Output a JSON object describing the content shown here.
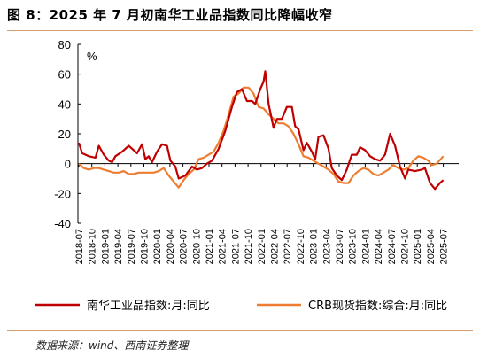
{
  "header": {
    "title": "图 8：2025 年 7 月初南华工业品指数同比降幅收窄"
  },
  "footer": {
    "source": "数据来源：wind、西南证券整理"
  },
  "colors": {
    "series1": "#c00000",
    "series2": "#ed7d31",
    "rule": "#d9a074"
  },
  "chart_data": {
    "type": "line",
    "title": "",
    "ylabel": "%",
    "xlabel": "",
    "ylim": [
      -40,
      80
    ],
    "yticks": [
      -40,
      -20,
      0,
      20,
      40,
      60,
      80
    ],
    "grid": false,
    "legend_position": "bottom",
    "x_tick_labels": [
      "2018-07",
      "2018-10",
      "2019-01",
      "2019-04",
      "2019-07",
      "2019-10",
      "2020-01",
      "2020-04",
      "2020-07",
      "2020-10",
      "2021-01",
      "2021-04",
      "2021-07",
      "2021-10",
      "2022-01",
      "2022-04",
      "2022-07",
      "2022-10",
      "2023-01",
      "2023-04",
      "2023-07",
      "2023-10",
      "2024-01",
      "2024-04",
      "2024-07",
      "2024-10",
      "2025-01",
      "2025-04",
      "2025-07"
    ],
    "series": [
      {
        "name": "南华工业品指数:月:同比",
        "points": [
          [
            0,
            14
          ],
          [
            0.1,
            7
          ],
          [
            0.3,
            5
          ],
          [
            0.5,
            4
          ],
          [
            0.6,
            12
          ],
          [
            0.75,
            6
          ],
          [
            0.9,
            2
          ],
          [
            1.0,
            1
          ],
          [
            1.1,
            5
          ],
          [
            1.3,
            8
          ],
          [
            1.5,
            12
          ],
          [
            1.6,
            10
          ],
          [
            1.75,
            7
          ],
          [
            1.9,
            13
          ],
          [
            2.0,
            3
          ],
          [
            2.1,
            5
          ],
          [
            2.2,
            1
          ],
          [
            2.35,
            8
          ],
          [
            2.5,
            13
          ],
          [
            2.65,
            12
          ],
          [
            2.75,
            2
          ],
          [
            2.9,
            -2
          ],
          [
            3.0,
            -10
          ],
          [
            3.2,
            -8
          ],
          [
            3.4,
            -2
          ],
          [
            3.55,
            -4
          ],
          [
            3.7,
            -3
          ],
          [
            3.85,
            0
          ],
          [
            4.0,
            2
          ],
          [
            4.2,
            10
          ],
          [
            4.4,
            22
          ],
          [
            4.6,
            38
          ],
          [
            4.75,
            48
          ],
          [
            4.9,
            50
          ],
          [
            5.05,
            42
          ],
          [
            5.2,
            42
          ],
          [
            5.3,
            40
          ],
          [
            5.45,
            50
          ],
          [
            5.55,
            55
          ],
          [
            5.6,
            62
          ],
          [
            5.7,
            40
          ],
          [
            5.85,
            24
          ],
          [
            5.95,
            30
          ],
          [
            6.1,
            30
          ],
          [
            6.25,
            38
          ],
          [
            6.4,
            38
          ],
          [
            6.5,
            25
          ],
          [
            6.6,
            23
          ],
          [
            6.75,
            9
          ],
          [
            6.85,
            14
          ],
          [
            7.0,
            8
          ],
          [
            7.1,
            3
          ],
          [
            7.2,
            18
          ],
          [
            7.35,
            19
          ],
          [
            7.5,
            10
          ],
          [
            7.6,
            -3
          ],
          [
            7.75,
            -8
          ],
          [
            7.9,
            -11
          ],
          [
            8.05,
            -4
          ],
          [
            8.2,
            6
          ],
          [
            8.35,
            6
          ],
          [
            8.45,
            11
          ],
          [
            8.6,
            9
          ],
          [
            8.75,
            5
          ],
          [
            8.9,
            3
          ],
          [
            9.05,
            2
          ],
          [
            9.2,
            6
          ],
          [
            9.35,
            20
          ],
          [
            9.5,
            12
          ],
          [
            9.65,
            -2
          ],
          [
            9.8,
            -10
          ],
          [
            9.9,
            -4
          ],
          [
            10.1,
            -5
          ],
          [
            10.3,
            -4
          ],
          [
            10.4,
            -3
          ],
          [
            10.55,
            -13
          ],
          [
            10.7,
            -17
          ],
          [
            10.85,
            -13
          ],
          [
            10.95,
            -11
          ]
        ]
      },
      {
        "name": "CRB现货指数:综合:月:同比",
        "points": [
          [
            0,
            0
          ],
          [
            0.15,
            -3
          ],
          [
            0.3,
            -4
          ],
          [
            0.45,
            -3
          ],
          [
            0.6,
            -3
          ],
          [
            0.75,
            -4
          ],
          [
            0.9,
            -5
          ],
          [
            1.05,
            -6
          ],
          [
            1.2,
            -6
          ],
          [
            1.35,
            -5
          ],
          [
            1.5,
            -7
          ],
          [
            1.65,
            -7
          ],
          [
            1.8,
            -6
          ],
          [
            1.95,
            -6
          ],
          [
            2.1,
            -6
          ],
          [
            2.25,
            -6
          ],
          [
            2.4,
            -5
          ],
          [
            2.55,
            -3
          ],
          [
            2.7,
            -8
          ],
          [
            2.85,
            -12
          ],
          [
            3.0,
            -16
          ],
          [
            3.15,
            -11
          ],
          [
            3.3,
            -7
          ],
          [
            3.45,
            -4
          ],
          [
            3.6,
            3
          ],
          [
            3.75,
            4
          ],
          [
            3.9,
            6
          ],
          [
            4.05,
            8
          ],
          [
            4.2,
            14
          ],
          [
            4.35,
            22
          ],
          [
            4.5,
            33
          ],
          [
            4.65,
            45
          ],
          [
            4.8,
            47
          ],
          [
            4.95,
            51
          ],
          [
            5.1,
            51
          ],
          [
            5.25,
            47
          ],
          [
            5.4,
            38
          ],
          [
            5.55,
            37
          ],
          [
            5.7,
            33
          ],
          [
            5.85,
            30
          ],
          [
            6.0,
            27
          ],
          [
            6.15,
            27
          ],
          [
            6.3,
            25
          ],
          [
            6.45,
            20
          ],
          [
            6.6,
            13
          ],
          [
            6.75,
            5
          ],
          [
            6.9,
            4
          ],
          [
            7.05,
            2
          ],
          [
            7.2,
            0
          ],
          [
            7.35,
            -2
          ],
          [
            7.5,
            -4
          ],
          [
            7.65,
            -7
          ],
          [
            7.8,
            -12
          ],
          [
            7.95,
            -13
          ],
          [
            8.1,
            -13
          ],
          [
            8.25,
            -8
          ],
          [
            8.4,
            -5
          ],
          [
            8.55,
            -3
          ],
          [
            8.7,
            -4
          ],
          [
            8.85,
            -7
          ],
          [
            9.0,
            -8
          ],
          [
            9.15,
            -6
          ],
          [
            9.3,
            -4
          ],
          [
            9.45,
            -1
          ],
          [
            9.6,
            -3
          ],
          [
            9.75,
            -4
          ],
          [
            9.9,
            -3
          ],
          [
            10.05,
            2
          ],
          [
            10.2,
            5
          ],
          [
            10.35,
            4
          ],
          [
            10.5,
            2
          ],
          [
            10.6,
            -1
          ],
          [
            10.75,
            0
          ],
          [
            10.95,
            5
          ]
        ]
      }
    ]
  }
}
